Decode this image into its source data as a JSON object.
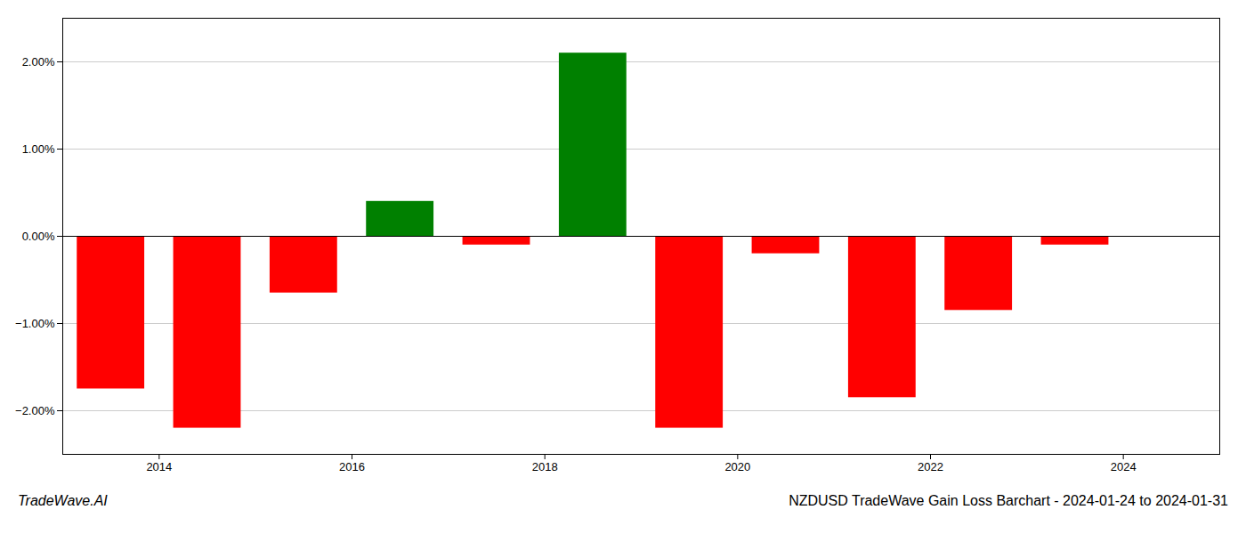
{
  "chart_data": {
    "type": "bar",
    "title": "NZDUSD TradeWave Gain Loss Barchart - 2024-01-24 to 2024-01-31",
    "annotations": [
      "TradeWave.AI"
    ],
    "x": [
      2013.5,
      2014.5,
      2015.5,
      2016.5,
      2017.5,
      2018.5,
      2019.5,
      2020.5,
      2021.5,
      2022.5,
      2023.5
    ],
    "values": [
      -1.75,
      -2.2,
      -0.65,
      0.4,
      -0.1,
      2.1,
      -2.2,
      -0.2,
      -1.85,
      -0.85,
      -0.1
    ],
    "colors": [
      "#ff0000",
      "#ff0000",
      "#ff0000",
      "#008000",
      "#ff0000",
      "#008000",
      "#ff0000",
      "#ff0000",
      "#ff0000",
      "#ff0000",
      "#ff0000"
    ],
    "xlim": [
      2013,
      2025
    ],
    "xticks": [
      2014,
      2016,
      2018,
      2020,
      2022,
      2024
    ],
    "ylim": [
      -2.5,
      2.5
    ],
    "yticks": [
      {
        "value": -2.0,
        "label": "−2.00%"
      },
      {
        "value": -1.0,
        "label": "−1.00%"
      },
      {
        "value": 0.0,
        "label": "0.00%"
      },
      {
        "value": 1.0,
        "label": "1.00%"
      },
      {
        "value": 2.0,
        "label": "2.00%"
      }
    ],
    "grid": true
  }
}
